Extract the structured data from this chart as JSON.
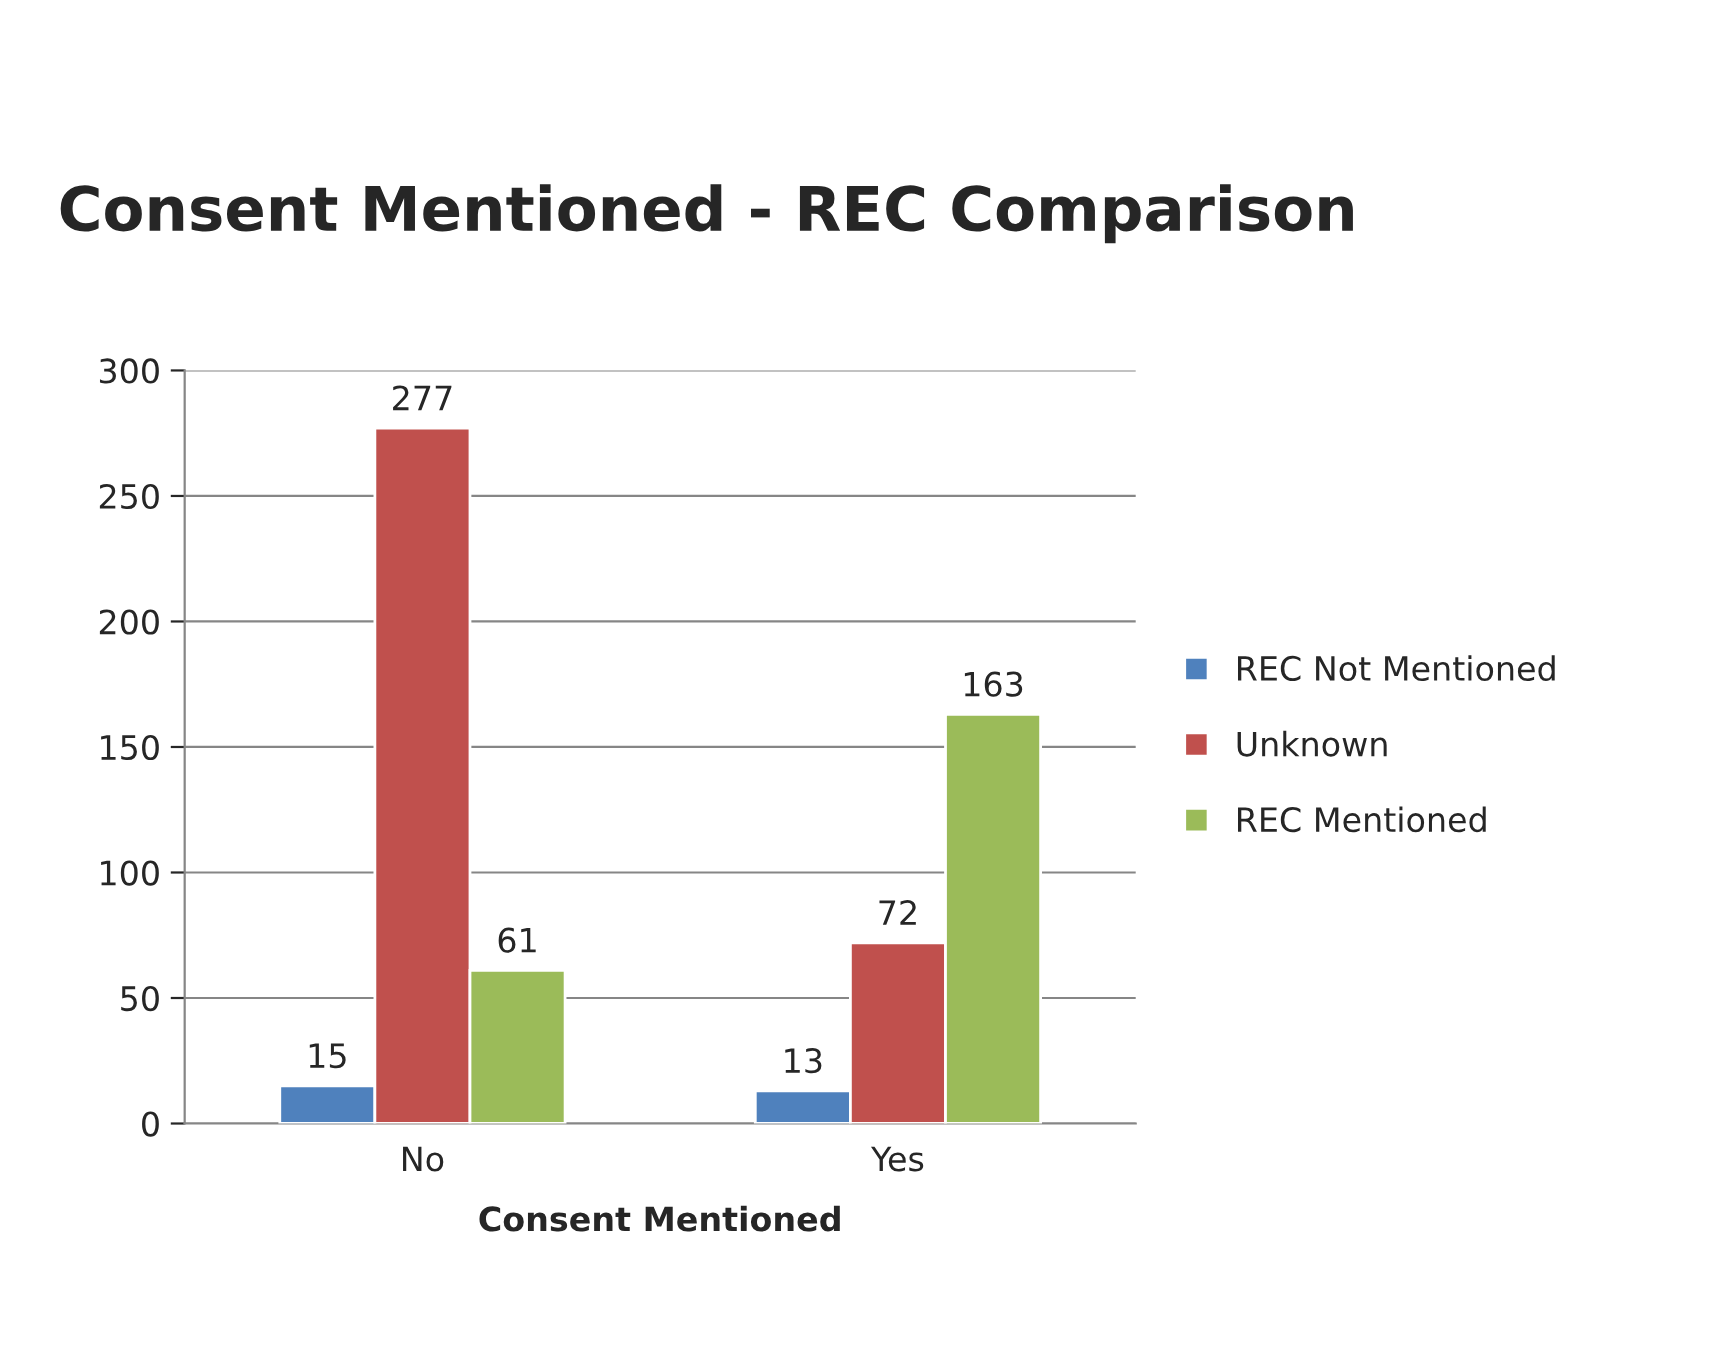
{
  "chart_data": {
    "type": "bar",
    "title": "Consent Mentioned - REC Comparison",
    "xlabel": "Consent Mentioned",
    "categories": [
      "No",
      "Yes"
    ],
    "series": [
      {
        "name": "REC Not Mentioned",
        "color": "#4f81bd",
        "values": [
          15,
          13
        ]
      },
      {
        "name": "Unknown",
        "color": "#c0504d",
        "values": [
          277,
          72
        ]
      },
      {
        "name": "REC Mentioned",
        "color": "#9bbb59",
        "values": [
          61,
          163
        ]
      }
    ],
    "ylim": [
      0,
      300
    ],
    "yticks": [
      0,
      50,
      100,
      150,
      200,
      250,
      300
    ],
    "grid": "y",
    "legend": "right",
    "data_labels": true
  }
}
